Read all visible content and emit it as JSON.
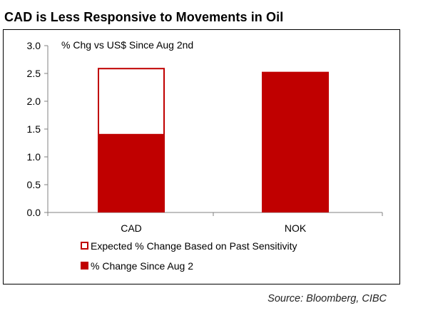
{
  "title": "CAD is Less Responsive to Movements in Oil",
  "source": "Source: Bloomberg, CIBC",
  "colors": {
    "bar_fill": "#c00000",
    "bar_outline": "#c00000",
    "axis": "#808080"
  },
  "chart_data": {
    "type": "bar",
    "stacked": true,
    "title": "CAD is Less Responsive to Movements in Oil",
    "annotation": "% Chg vs US$ Since Aug 2nd",
    "categories": [
      "CAD",
      "NOK"
    ],
    "series": [
      {
        "name": "% Change Since Aug 2",
        "style": "solid",
        "values": [
          1.4,
          2.53
        ]
      },
      {
        "name": "Expected % Change Based on Past Sensitivity",
        "style": "outline",
        "values": [
          1.2,
          0
        ]
      }
    ],
    "legend_order": [
      1,
      0
    ],
    "y_ticks": [
      "0.0",
      "0.5",
      "1.0",
      "1.5",
      "2.0",
      "2.5",
      "3.0"
    ],
    "ylim": [
      0,
      3
    ],
    "xlabel": "",
    "ylabel": "",
    "grid": false,
    "legend_position": "bottom-left"
  }
}
